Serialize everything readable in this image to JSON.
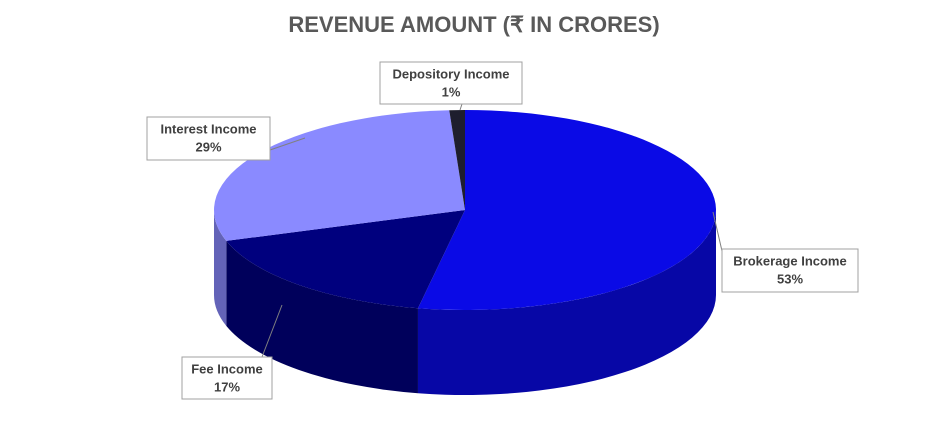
{
  "chart_data": {
    "type": "pie",
    "title": "REVENUE AMOUNT (₹ IN CRORES)",
    "categories": [
      "Brokerage Income",
      "Fee Income",
      "Interest Income",
      "Depository Income"
    ],
    "values": [
      53,
      17,
      29,
      1
    ],
    "value_labels": [
      "53%",
      "17%",
      "29%",
      "1%"
    ],
    "colors": [
      "#0a0ae6",
      "#00007e",
      "#8a8aff",
      "#1e1e2e"
    ]
  }
}
